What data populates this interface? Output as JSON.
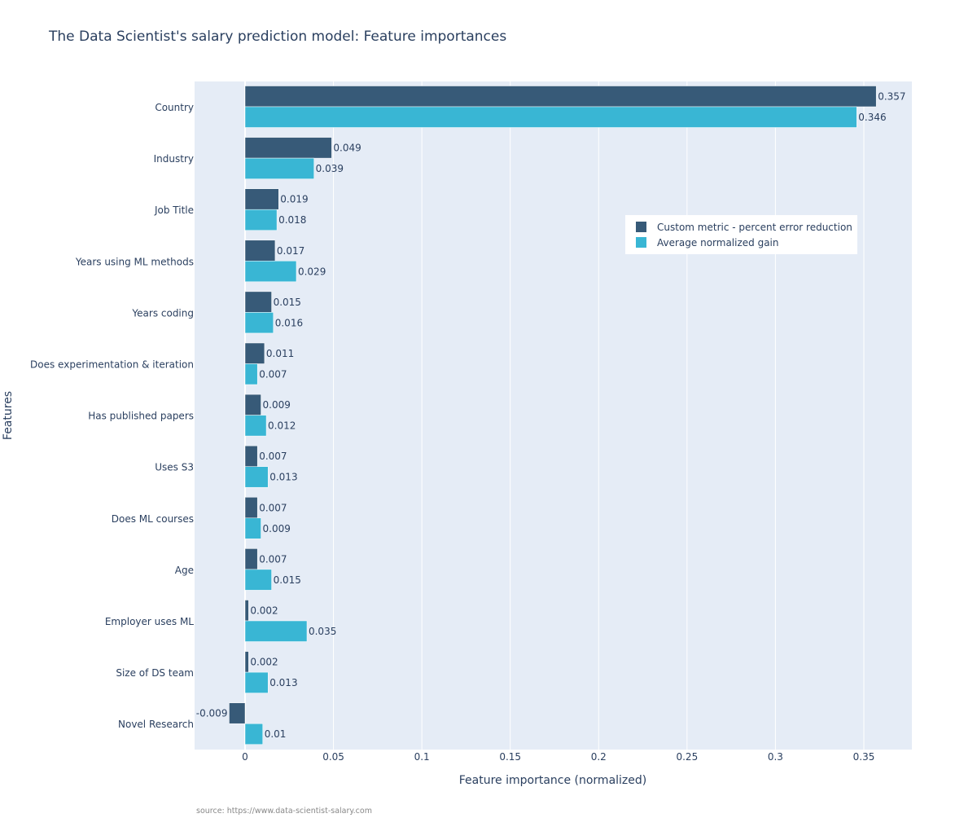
{
  "chart_data": {
    "type": "bar",
    "orientation": "horizontal",
    "title": "The Data Scientist's salary prediction model: Feature importances",
    "xlabel": "Feature importance (normalized)",
    "ylabel": "Features",
    "xlim": [
      -0.0286,
      0.3772
    ],
    "xticks": [
      0,
      0.05,
      0.1,
      0.15,
      0.2,
      0.25,
      0.3,
      0.35
    ],
    "xtick_labels": [
      "0",
      "0.05",
      "0.1",
      "0.15",
      "0.2",
      "0.25",
      "0.3",
      "0.35"
    ],
    "grid": true,
    "legend_position": "top-right",
    "categories": [
      "Country",
      "Industry",
      "Job Title",
      "Years using ML methods",
      "Years coding",
      "Does experimentation & iteration",
      "Has published papers",
      "Uses S3",
      "Does ML courses",
      "Age",
      "Employer uses ML",
      "Size of DS team",
      "Novel Research"
    ],
    "series": [
      {
        "name": "Custom metric - percent error reduction",
        "color": "#375a78",
        "values": [
          0.357,
          0.049,
          0.019,
          0.017,
          0.015,
          0.011,
          0.009,
          0.007,
          0.007,
          0.007,
          0.002,
          0.002,
          -0.009
        ]
      },
      {
        "name": "Average normalized gain",
        "color": "#39b6d4",
        "values": [
          0.346,
          0.039,
          0.018,
          0.029,
          0.016,
          0.007,
          0.012,
          0.013,
          0.009,
          0.015,
          0.035,
          0.013,
          0.01
        ]
      }
    ],
    "plot_background": "#e5ecf6"
  },
  "source_note": "source: https://www.data-scientist-salary.com"
}
